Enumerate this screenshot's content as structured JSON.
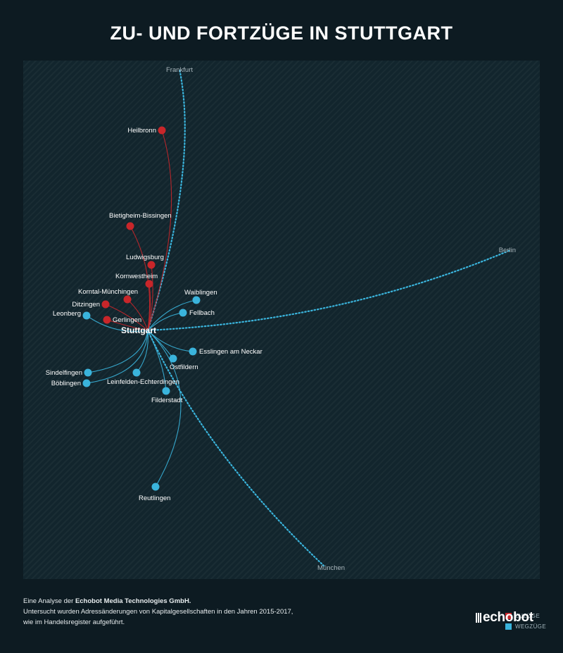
{
  "title": "ZU- UND FORTZÜGE IN STUTTGART",
  "hub": {
    "name": "Stuttgart"
  },
  "colors": {
    "background": "#0d1b22",
    "panel": "#12252d",
    "zuzuege": "#c8262a",
    "wegzuege": "#3ab4dc",
    "far": "#aab7bd"
  },
  "legend": {
    "zuzuege": "ZUZÜGE",
    "wegzuege": "WEGZÜGE"
  },
  "far_cities": [
    "Frankfurt",
    "Berlin",
    "München"
  ],
  "zuzuege": [
    "Heilbronn",
    "Bietigheim-Bissingen",
    "Ludwigsburg",
    "Kornwestheim",
    "Korntal-Münchingen",
    "Ditzingen",
    "Gerlingen"
  ],
  "wegzuege": [
    "Waiblingen",
    "Fellbach",
    "Leonberg",
    "Esslingen am Neckar",
    "Ostfildern",
    "Sindelfingen",
    "Böblingen",
    "Leinfelden-Echterdingen",
    "Filderstadt",
    "Reutlingen"
  ],
  "footer": {
    "intro": "Eine Analyse der ",
    "company": "Echobot Media Technologies GmbH.",
    "line2": "Untersucht wurden Adressänderungen von Kapitalgesellschaften in den Jahren 2015-2017,",
    "line3": "wie im Handelsregister aufgeführt."
  },
  "logo": "echobot"
}
